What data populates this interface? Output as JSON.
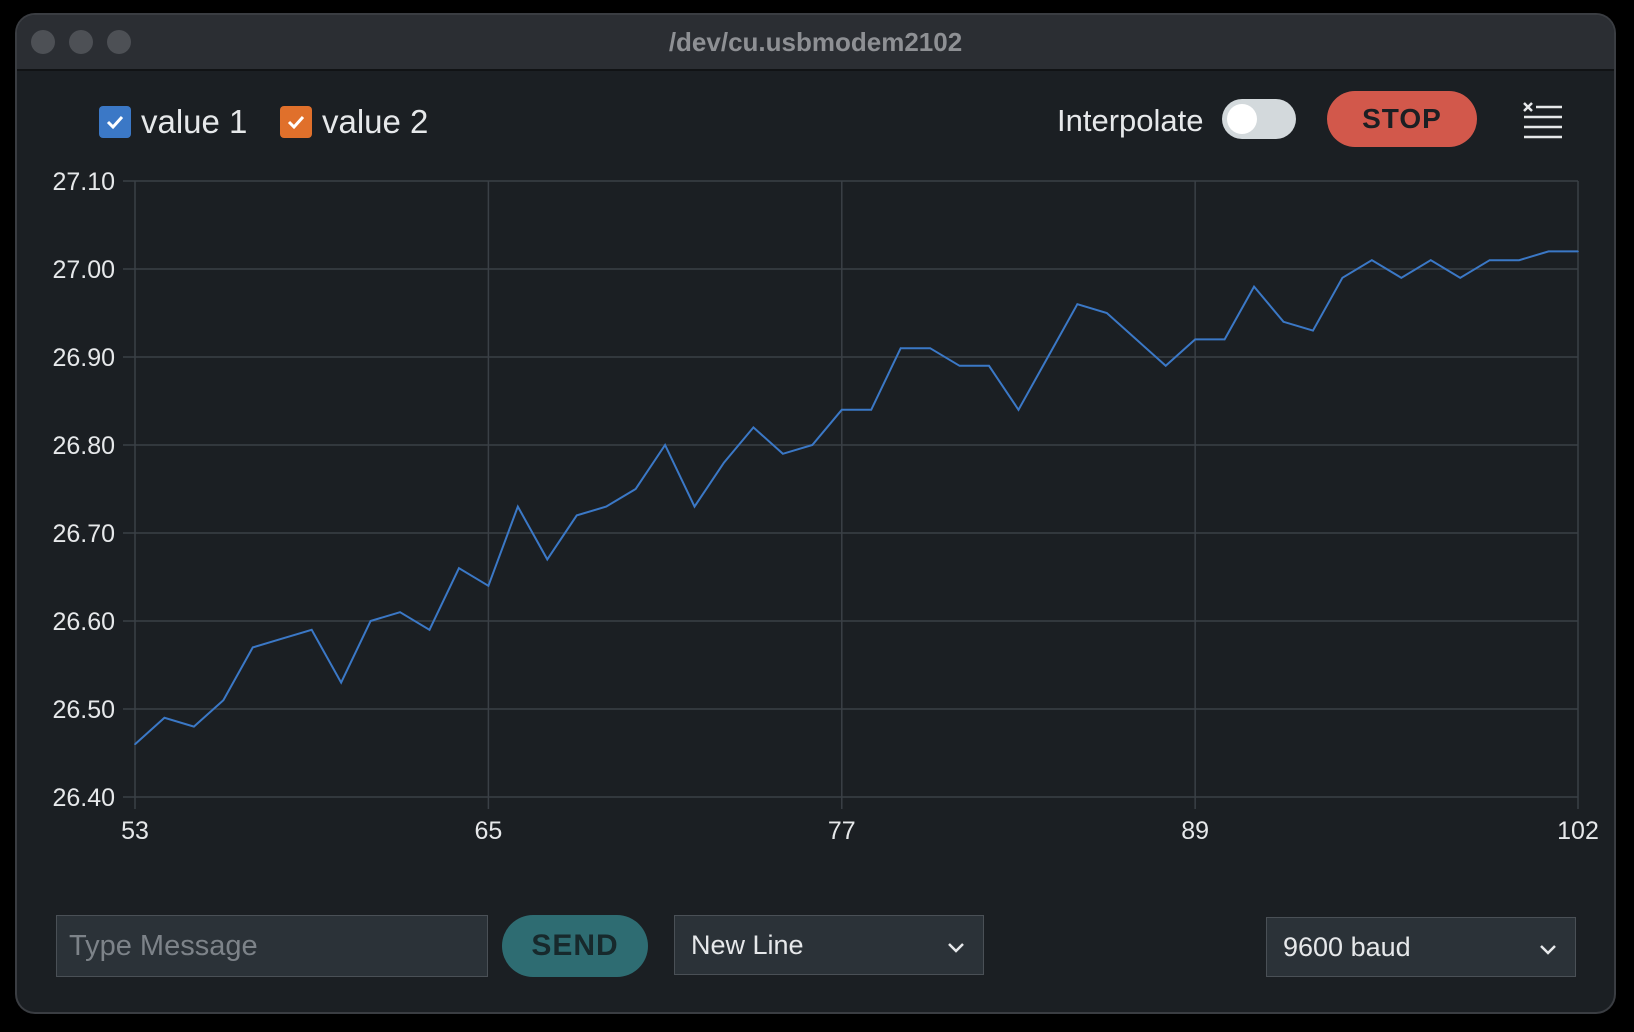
{
  "window": {
    "title": "/dev/cu.usbmodem2102"
  },
  "legend": {
    "items": [
      {
        "label": "value 1",
        "color": "#3b78c6",
        "checked": true
      },
      {
        "label": "value 2",
        "color": "#e0702b",
        "checked": true
      }
    ]
  },
  "controls": {
    "interpolate_label": "Interpolate",
    "interpolate_on": false,
    "stop_label": "STOP",
    "clear_icon": "clear-list-icon"
  },
  "footer": {
    "message_placeholder": "Type Message",
    "message_value": "",
    "send_label": "SEND",
    "line_ending": "New Line",
    "baud": "9600 baud"
  },
  "chart_data": {
    "type": "line",
    "title": "",
    "xlabel": "",
    "ylabel": "",
    "xlim": [
      53,
      102
    ],
    "ylim": [
      26.4,
      27.1
    ],
    "x_ticks": [
      "53",
      "65",
      "77",
      "89",
      "102"
    ],
    "y_ticks": [
      "27.10",
      "27.00",
      "26.90",
      "26.80",
      "26.70",
      "26.60",
      "26.50",
      "26.40"
    ],
    "grid": true,
    "series": [
      {
        "name": "value 1",
        "color": "#3b78c6",
        "x": [
          53,
          54,
          55,
          56,
          57,
          58,
          59,
          60,
          61,
          62,
          63,
          64,
          65,
          66,
          67,
          68,
          69,
          70,
          71,
          72,
          73,
          74,
          75,
          76,
          77,
          78,
          79,
          80,
          81,
          82,
          83,
          84,
          85,
          86,
          87,
          88,
          89,
          90,
          91,
          92,
          93,
          94,
          95,
          96,
          97,
          98,
          99,
          100,
          101,
          102
        ],
        "values": [
          26.46,
          26.49,
          26.48,
          26.51,
          26.57,
          26.58,
          26.59,
          26.53,
          26.6,
          26.61,
          26.59,
          26.66,
          26.64,
          26.73,
          26.67,
          26.72,
          26.73,
          26.75,
          26.8,
          26.73,
          26.78,
          26.82,
          26.79,
          26.8,
          26.84,
          26.84,
          26.91,
          26.91,
          26.89,
          26.89,
          26.84,
          26.9,
          26.96,
          26.95,
          26.92,
          26.89,
          26.92,
          26.92,
          26.98,
          26.94,
          26.93,
          26.99,
          27.01,
          26.99,
          27.01,
          26.99,
          27.01,
          27.01,
          27.02,
          27.02
        ]
      },
      {
        "name": "value 2",
        "color": "#e0702b",
        "x": [],
        "values": []
      }
    ]
  }
}
